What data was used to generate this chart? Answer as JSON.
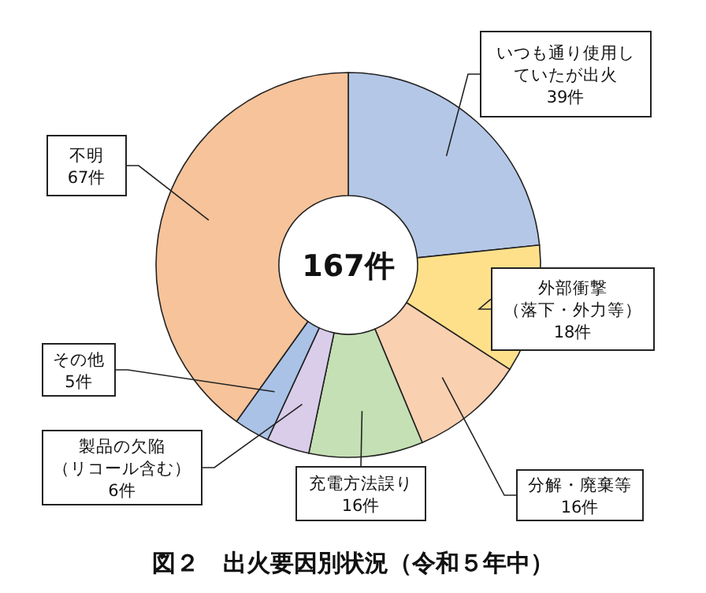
{
  "chart_data": {
    "type": "donut",
    "title": "図２　出火要因別状況（令和５年中）",
    "categories": [
      "いつも通り使用していたが出火",
      "外部衝撃（落下・外力等）",
      "分解・廃棄等",
      "充電方法誤り",
      "製品の欠陥（リコール含む）",
      "その他",
      "不明"
    ],
    "values": [
      39,
      18,
      16,
      16,
      6,
      5,
      67
    ],
    "value_labels": [
      "39件",
      "18件",
      "16件",
      "16件",
      "6件",
      "5件",
      "67件"
    ],
    "colors": [
      "#b4c7e7",
      "#ffe08a",
      "#f9d0b0",
      "#c5e0b4",
      "#d9cdea",
      "#a9c2e6",
      "#f6c39a"
    ],
    "annotations": [
      "167件"
    ]
  }
}
